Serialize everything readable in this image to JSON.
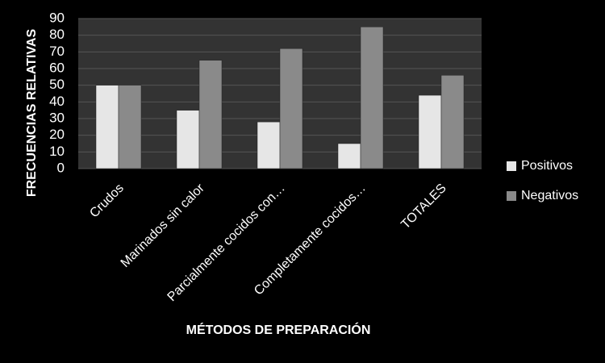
{
  "chart_data": {
    "type": "bar",
    "x_label": "MÉTODOS DE PREPARACIÓN",
    "y_label": "FRECUENCIAS RELATIVAS",
    "categories": [
      "Crudos",
      "Marinados sin calor",
      "Parcialmente cocidos con…",
      "Completamente cocidos…",
      "TOTALES"
    ],
    "series": [
      {
        "name": "Positivos",
        "color": "#e6e6e6",
        "values": [
          50,
          35,
          28,
          15,
          44
        ]
      },
      {
        "name": "Negativos",
        "color": "#8a8a8a",
        "values": [
          50,
          65,
          72,
          85,
          56
        ]
      }
    ],
    "ylim": [
      0,
      90
    ],
    "yticks": [
      0,
      10,
      20,
      30,
      40,
      50,
      60,
      70,
      80,
      90
    ],
    "grid": true
  }
}
